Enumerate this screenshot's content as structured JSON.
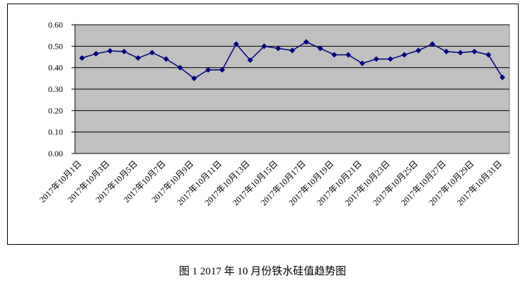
{
  "chart_data": {
    "type": "line",
    "title": "图 1    2017 年 10 月份铁水硅值趋势图",
    "categories": [
      "2017年10月1日",
      null,
      "2017年10月3日",
      null,
      "2017年10月5日",
      null,
      "2017年10月7日",
      null,
      "2017年10月9日",
      null,
      "2017年10月11日",
      null,
      "2017年10月13日",
      null,
      "2017年10月15日",
      null,
      "2017年10月17日",
      null,
      "2017年10月19日",
      null,
      "2017年10月21日",
      null,
      "2017年10月23日",
      null,
      "2017年10月25日",
      null,
      "2017年10月27日",
      null,
      "2017年10月29日",
      null,
      "2017年10月31日"
    ],
    "series": [
      {
        "color": "#000080",
        "values": [
          0.445,
          0.465,
          0.478,
          0.475,
          0.445,
          0.47,
          0.44,
          0.4,
          0.35,
          0.39,
          0.39,
          0.51,
          0.435,
          0.5,
          0.49,
          0.48,
          0.52,
          0.49,
          0.46,
          0.46,
          0.42,
          0.44,
          0.44,
          0.46,
          0.48,
          0.51,
          0.475,
          0.47,
          0.475,
          0.46,
          0.355
        ]
      }
    ],
    "ylim": [
      0,
      0.6
    ],
    "yticks": [
      {
        "value": 0,
        "label": "0.00"
      },
      {
        "value": 0.1,
        "label": "0.10"
      },
      {
        "value": 0.2,
        "label": "0.20"
      },
      {
        "value": 0.3,
        "label": "0.30"
      },
      {
        "value": 0.4,
        "label": "0.40"
      },
      {
        "value": 0.5,
        "label": "0.50"
      },
      {
        "value": 0.6,
        "label": "0.60"
      }
    ],
    "grid": true,
    "plot_background": "#c0c0c0"
  }
}
